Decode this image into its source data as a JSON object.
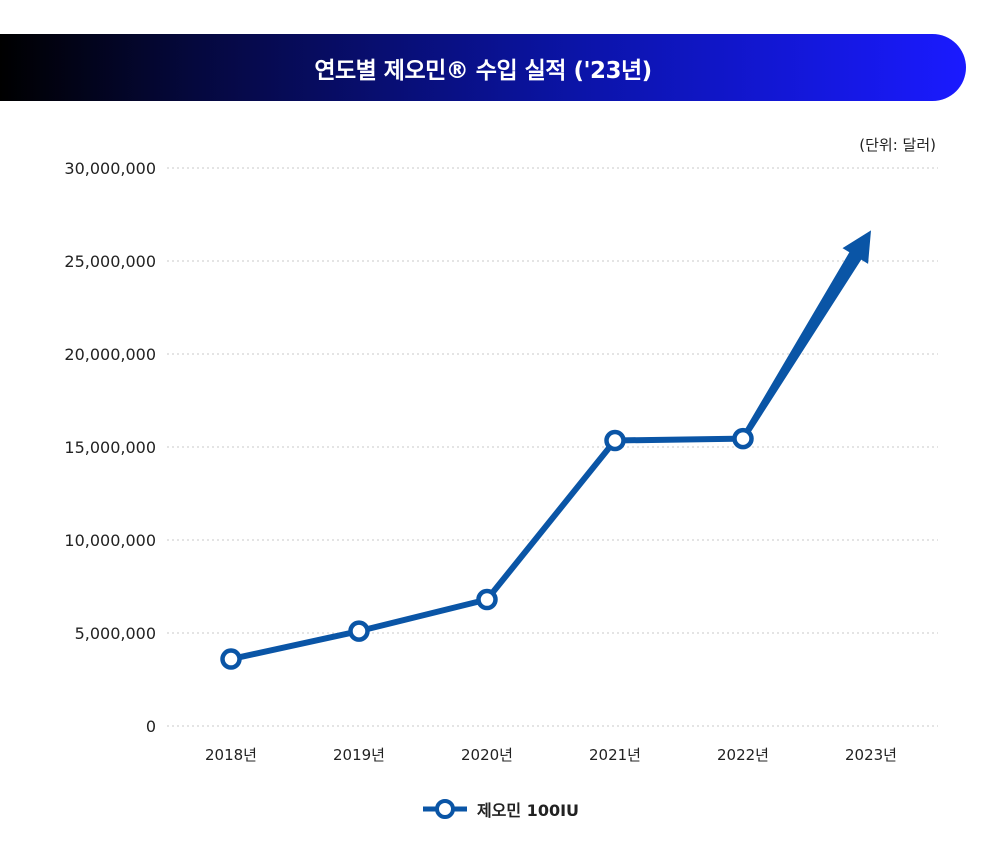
{
  "title": "연도별 제오민® 수입 실적 ('23년)",
  "unit": "(단위: 달러)",
  "colors": {
    "line": "#0a55a6",
    "grid": "#c8c8c8"
  },
  "chart_data": {
    "type": "line",
    "categories": [
      "2018년",
      "2019년",
      "2020년",
      "2021년",
      "2022년",
      "2023년"
    ],
    "series": [
      {
        "name": "제오민 100IU",
        "values": [
          3600000,
          5100000,
          6800000,
          15350000,
          15450000,
          null
        ]
      }
    ],
    "arrow_target": {
      "category": "2023년",
      "value": 26000000
    },
    "y_ticks": [
      "0",
      "5,000,000",
      "10,000,000",
      "15,000,000",
      "20,000,000",
      "25,000,000",
      "30,000,000"
    ],
    "ylim": [
      0,
      30000000
    ],
    "grid": true,
    "legend_position": "bottom-center"
  }
}
